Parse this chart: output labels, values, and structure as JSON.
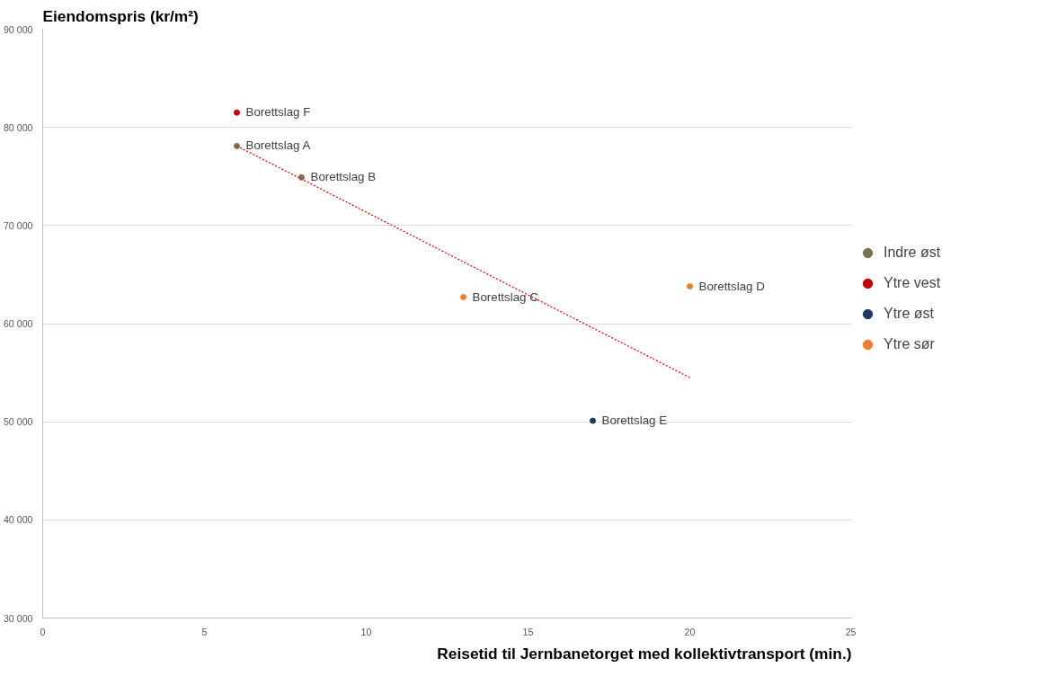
{
  "chart_data": {
    "type": "scatter",
    "ylabel": "Eiendomspris (kr/m²)",
    "xlabel": "Reisetid til Jernbanetorget med kollektivtransport (min.)",
    "xlim": [
      0,
      25
    ],
    "xticks": [
      0,
      5,
      10,
      15,
      20,
      25
    ],
    "ylim": [
      30000,
      90000
    ],
    "yticks": [
      {
        "value": 30000,
        "label": "30 000"
      },
      {
        "value": 40000,
        "label": "40 000"
      },
      {
        "value": 50000,
        "label": "50 000"
      },
      {
        "value": 60000,
        "label": "60 000"
      },
      {
        "value": 70000,
        "label": "70 000"
      },
      {
        "value": 80000,
        "label": "80 000"
      },
      {
        "value": 90000,
        "label": "90 000"
      }
    ],
    "grid": "y",
    "legend": "right",
    "marker": "circle",
    "series": [
      {
        "name": "Indre øst",
        "color": "#767656",
        "x": [
          6,
          8
        ],
        "values": [
          78100,
          74900
        ]
      },
      {
        "name": "Ytre vest",
        "color": "#c00000",
        "x": [
          6
        ],
        "values": [
          81500
        ]
      },
      {
        "name": "Ytre øst",
        "color": "#1f3864",
        "x": [
          17
        ],
        "values": [
          50100
        ]
      },
      {
        "name": "Ytre sør",
        "color": "#ed7d31",
        "x": [
          13,
          20
        ],
        "values": [
          62700,
          63800
        ]
      },
      {
        "type": "line",
        "marker": "none",
        "color": "#ff0000",
        "line_style": "dotted",
        "x": [
          6,
          20
        ],
        "values": [
          78100,
          54500
        ]
      }
    ],
    "annotations": [
      {
        "text": "Borettslag F",
        "x": 6,
        "y": 81500
      },
      {
        "text": "Borettslag A",
        "x": 6,
        "y": 78100
      },
      {
        "text": "Borettslag B",
        "x": 8,
        "y": 74900
      },
      {
        "text": "Borettslag C",
        "x": 13,
        "y": 62700
      },
      {
        "text": "Borettslag D",
        "x": 20,
        "y": 63800
      },
      {
        "text": "Borettslag E",
        "x": 17,
        "y": 50100
      }
    ]
  }
}
